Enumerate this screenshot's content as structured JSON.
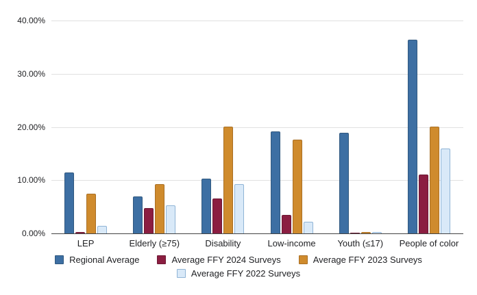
{
  "chart_data": {
    "type": "bar",
    "title": "",
    "categories": [
      "LEP",
      "Elderly (≥75)",
      "Disability",
      "Low-income",
      "Youth (≤17)",
      "People of color"
    ],
    "series": [
      {
        "name": "Regional Average",
        "color": "#3d6fa3",
        "border_color": "#30587f",
        "values": [
          11.5,
          7.0,
          10.3,
          19.1,
          18.9,
          36.4
        ]
      },
      {
        "name": "Average FFY 2024 Surveys",
        "color": "#8b1e41",
        "border_color": "#6d1833",
        "values": [
          0.2,
          4.8,
          6.6,
          3.5,
          0.1,
          11.1
        ]
      },
      {
        "name": "Average FFY 2023 Surveys",
        "color": "#cf8b2d",
        "border_color": "#a96f24",
        "values": [
          7.4,
          9.3,
          20.1,
          17.6,
          0.2,
          20.1
        ]
      },
      {
        "name": "Average FFY 2022 Surveys",
        "color": "#d9e9f8",
        "border_color": "#8fb4d6",
        "values": [
          1.4,
          5.3,
          9.2,
          2.2,
          0.2,
          16.0
        ]
      }
    ],
    "ylim": [
      0,
      40
    ],
    "y_ticks": [
      {
        "value": 0,
        "label": "0.00%"
      },
      {
        "value": 10,
        "label": "10.00%"
      },
      {
        "value": 20,
        "label": "20.00%"
      },
      {
        "value": 30,
        "label": "30.00%"
      },
      {
        "value": 40,
        "label": "40.00%"
      }
    ],
    "grid": true,
    "legend_position": "bottom"
  },
  "colors": {
    "background": "#ffffff",
    "gridline": "#e0e0e0",
    "axis_line": "#424242",
    "text": "#202124"
  }
}
